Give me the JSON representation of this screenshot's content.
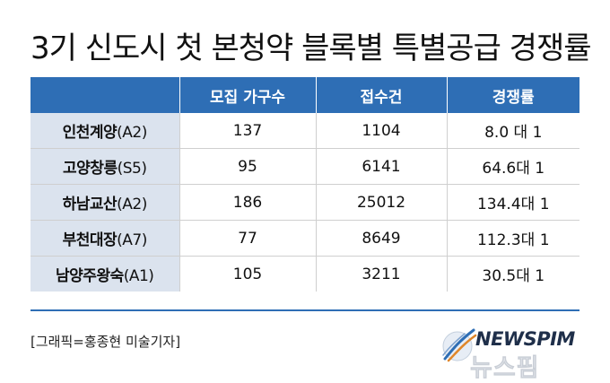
{
  "title": "3기 신도시 첫 본청약 블록별 특별공급 경쟁률",
  "credit": "[그래픽=홍종현 미술기자]",
  "logo": {
    "text": "NEWSPIM",
    "sub": "뉴스핌"
  },
  "colors": {
    "header_bg": "#2e6eb5",
    "row_head_bg": "#dbe3ee",
    "title": "#111111"
  },
  "chart_data": {
    "type": "table",
    "title": "3기 신도시 첫 본청약 블록별 특별공급 경쟁률",
    "columns": [
      "",
      "모집 가구수",
      "접수건",
      "경쟁률"
    ],
    "rows": [
      {
        "name": "인천계양",
        "code": "(A2)",
        "units": "137",
        "applications": "1104",
        "ratio": "8.0 대 1"
      },
      {
        "name": "고양창릉",
        "code": "(S5)",
        "units": "95",
        "applications": "6141",
        "ratio": "64.6대 1"
      },
      {
        "name": "하남교산",
        "code": "(A2)",
        "units": "186",
        "applications": "25012",
        "ratio": "134.4대 1"
      },
      {
        "name": "부천대장",
        "code": "(A7)",
        "units": "77",
        "applications": "8649",
        "ratio": "112.3대 1"
      },
      {
        "name": "남양주왕숙",
        "code": "(A1)",
        "units": "105",
        "applications": "3211",
        "ratio": "30.5대 1"
      }
    ]
  }
}
